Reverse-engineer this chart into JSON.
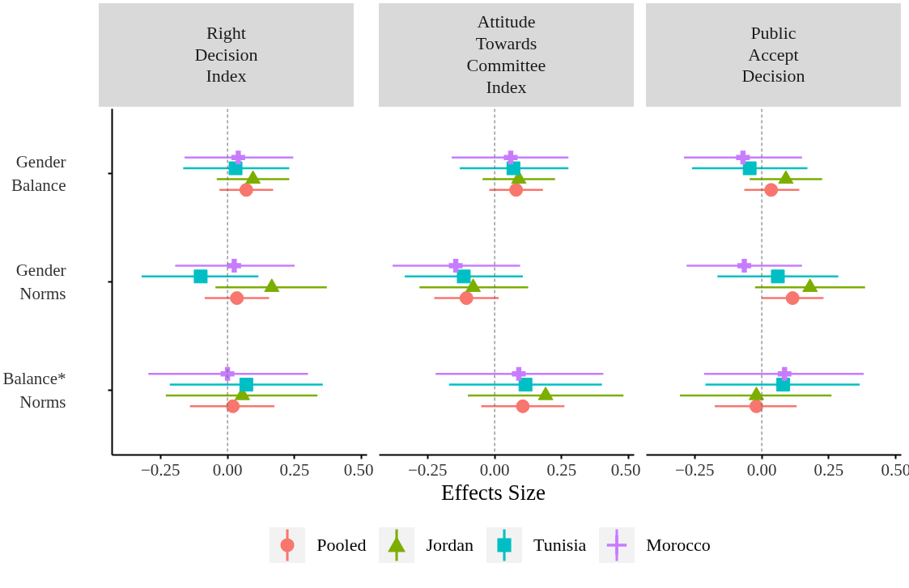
{
  "chart_data": [
    {
      "type": "scatter",
      "orientation": "horizontal",
      "title": "Right\nDecision\nIndex",
      "legend": "bottom",
      "categories": [
        "Gender\nBalance",
        "Gender\nNorms",
        "Balance*\nNorms"
      ],
      "xlim": [
        -0.43,
        0.52
      ],
      "xticks": [
        {
          "value": -0.25,
          "label": "−0.25"
        },
        {
          "value": 0,
          "label": "0.00"
        },
        {
          "value": 0.25,
          "label": "0.25"
        },
        {
          "value": 0.5,
          "label": "0.50"
        }
      ],
      "grid": false,
      "ref_lines": [
        {
          "axis": "x",
          "value": 0,
          "line_style": "dashed",
          "color": "#666666"
        }
      ],
      "series": [
        {
          "name": "Pooled",
          "color": "#f8766d",
          "marker": "circle",
          "values": [
            0.07,
            0.035,
            0.02
          ],
          "errors": [
            [
              -0.03,
              0.17
            ],
            [
              -0.085,
              0.155
            ],
            [
              -0.14,
              0.175
            ]
          ]
        },
        {
          "name": "Jordan",
          "color": "#7cae00",
          "marker": "triangle",
          "values": [
            0.095,
            0.165,
            0.055
          ],
          "errors": [
            [
              -0.04,
              0.23
            ],
            [
              -0.045,
              0.37
            ],
            [
              -0.23,
              0.335
            ]
          ]
        },
        {
          "name": "Tunisia",
          "color": "#00bfc4",
          "marker": "square",
          "values": [
            0.03,
            -0.1,
            0.07
          ],
          "errors": [
            [
              -0.165,
              0.23
            ],
            [
              -0.32,
              0.115
            ],
            [
              -0.215,
              0.355
            ]
          ]
        },
        {
          "name": "Morocco",
          "color": "#c77cff",
          "marker": "cross",
          "values": [
            0.04,
            0.025,
            0.0
          ],
          "errors": [
            [
              -0.16,
              0.245
            ],
            [
              -0.195,
              0.25
            ],
            [
              -0.295,
              0.3
            ]
          ]
        }
      ]
    },
    {
      "type": "scatter",
      "orientation": "horizontal",
      "title": "Attitude\nTowards\nCommittee\nIndex",
      "xlabel": "Effects Size",
      "legend": "bottom",
      "tick_labels": "x",
      "categories": [
        "Gender\nBalance",
        "Gender\nNorms",
        "Balance*\nNorms"
      ],
      "xlim": [
        -0.43,
        0.52
      ],
      "xticks": [
        {
          "value": -0.25,
          "label": "−0.25"
        },
        {
          "value": 0,
          "label": "0.00"
        },
        {
          "value": 0.25,
          "label": "0.25"
        },
        {
          "value": 0.5,
          "label": "0.50"
        }
      ],
      "grid": false,
      "ref_lines": [
        {
          "axis": "x",
          "value": 0,
          "line_style": "dashed",
          "color": "#666666"
        }
      ],
      "series": [
        {
          "name": "Pooled",
          "color": "#f8766d",
          "marker": "circle",
          "values": [
            0.08,
            -0.105,
            0.105
          ],
          "errors": [
            [
              -0.02,
              0.18
            ],
            [
              -0.225,
              0.015
            ],
            [
              -0.05,
              0.26
            ]
          ]
        },
        {
          "name": "Jordan",
          "color": "#7cae00",
          "marker": "triangle",
          "values": [
            0.09,
            -0.08,
            0.19
          ],
          "errors": [
            [
              -0.045,
              0.225
            ],
            [
              -0.28,
              0.125
            ],
            [
              -0.1,
              0.48
            ]
          ]
        },
        {
          "name": "Tunisia",
          "color": "#00bfc4",
          "marker": "square",
          "values": [
            0.07,
            -0.115,
            0.115
          ],
          "errors": [
            [
              -0.13,
              0.275
            ],
            [
              -0.335,
              0.105
            ],
            [
              -0.17,
              0.4
            ]
          ]
        },
        {
          "name": "Morocco",
          "color": "#c77cff",
          "marker": "cross",
          "values": [
            0.06,
            -0.145,
            0.09
          ],
          "errors": [
            [
              -0.16,
              0.275
            ],
            [
              -0.38,
              0.095
            ],
            [
              -0.22,
              0.405
            ]
          ]
        }
      ]
    },
    {
      "type": "scatter",
      "orientation": "horizontal",
      "title": "Public\nAccept\nDecision",
      "legend": "bottom",
      "tick_labels": "x",
      "categories": [
        "Gender\nBalance",
        "Gender\nNorms",
        "Balance*\nNorms"
      ],
      "xlim": [
        -0.43,
        0.52
      ],
      "xticks": [
        {
          "value": -0.25,
          "label": "−0.25"
        },
        {
          "value": 0,
          "label": "0.00"
        },
        {
          "value": 0.25,
          "label": "0.25"
        },
        {
          "value": 0.5,
          "label": "0.50"
        }
      ],
      "grid": false,
      "ref_lines": [
        {
          "axis": "x",
          "value": 0,
          "line_style": "dashed",
          "color": "#666666"
        }
      ],
      "series": [
        {
          "name": "Pooled",
          "color": "#f8766d",
          "marker": "circle",
          "values": [
            0.035,
            0.115,
            -0.02
          ],
          "errors": [
            [
              -0.065,
              0.14
            ],
            [
              0.0,
              0.23
            ],
            [
              -0.175,
              0.13
            ]
          ]
        },
        {
          "name": "Jordan",
          "color": "#7cae00",
          "marker": "triangle",
          "values": [
            0.09,
            0.18,
            -0.02
          ],
          "errors": [
            [
              -0.045,
              0.225
            ],
            [
              -0.025,
              0.385
            ],
            [
              -0.305,
              0.26
            ]
          ]
        },
        {
          "name": "Tunisia",
          "color": "#00bfc4",
          "marker": "square",
          "values": [
            -0.045,
            0.06,
            0.08
          ],
          "errors": [
            [
              -0.26,
              0.17
            ],
            [
              -0.165,
              0.285
            ],
            [
              -0.21,
              0.365
            ]
          ]
        },
        {
          "name": "Morocco",
          "color": "#c77cff",
          "marker": "cross",
          "values": [
            -0.07,
            -0.065,
            0.085
          ],
          "errors": [
            [
              -0.29,
              0.15
            ],
            [
              -0.28,
              0.15
            ],
            [
              -0.215,
              0.38
            ]
          ]
        }
      ]
    }
  ]
}
